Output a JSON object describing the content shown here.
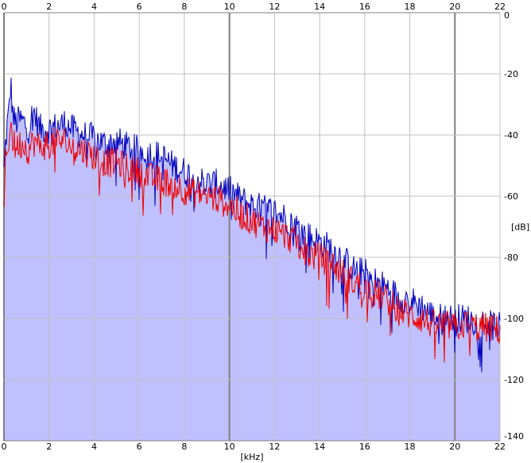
{
  "chart_data": {
    "type": "area",
    "xlabel": "[kHz]",
    "ylabel": "[dB]",
    "xlim": [
      0,
      22
    ],
    "ylim": [
      -140,
      0
    ],
    "x_ticks": [
      0,
      2,
      4,
      6,
      8,
      10,
      12,
      14,
      16,
      18,
      20,
      22
    ],
    "y_ticks": [
      0,
      -20,
      -40,
      -60,
      -80,
      -100,
      -120,
      -140
    ],
    "y_unit_at": -70,
    "grid": true,
    "major_x_ticks": [
      0,
      10,
      20
    ],
    "colors": {
      "background": "#ffffff",
      "grid": "#c0c0c0",
      "grid_major": "#808080",
      "envelope_fill": "#c0c0ff",
      "channel_1": "#0000c0",
      "channel_2": "#ee0000"
    },
    "series": [
      {
        "color": "#0000c0",
        "x": [
          0,
          0.05,
          0.15,
          0.2,
          0.3,
          0.4,
          0.5,
          0.7,
          0.9,
          1.1,
          1.3,
          1.6,
          2.0,
          2.4,
          2.7,
          3.0,
          3.5,
          4.0,
          4.5,
          5.0,
          5.5,
          6.0,
          6.5,
          7.0,
          7.5,
          8.0,
          8.5,
          9.0,
          9.5,
          10.0,
          10.5,
          11.0,
          11.5,
          12.0,
          12.5,
          13.0,
          13.5,
          14.0,
          14.5,
          15.0,
          15.5,
          16.0,
          16.5,
          17.0,
          17.5,
          18.0,
          18.5,
          19.0,
          19.5,
          20.0,
          20.5,
          21.0,
          21.5,
          22.0
        ],
        "y": [
          -52,
          -45,
          -36,
          -34,
          -23,
          -34,
          -36,
          -35,
          -36,
          -38,
          -32,
          -38,
          -38,
          -37,
          -36,
          -38,
          -40,
          -41,
          -43,
          -42,
          -44,
          -45,
          -46,
          -47,
          -50,
          -52,
          -54,
          -56,
          -56,
          -58,
          -61,
          -63,
          -64,
          -65,
          -67,
          -70,
          -73,
          -75,
          -77,
          -80,
          -84,
          -85,
          -88,
          -90,
          -93,
          -94,
          -96,
          -99,
          -100,
          -100,
          -100,
          -101,
          -102,
          -103
        ]
      },
      {
        "color": "#ee0000",
        "x": [
          0,
          0.05,
          0.15,
          0.2,
          0.3,
          0.4,
          0.5,
          0.7,
          0.9,
          1.1,
          1.3,
          1.6,
          2.0,
          2.4,
          2.7,
          3.0,
          3.5,
          4.0,
          4.5,
          5.0,
          5.5,
          6.0,
          6.5,
          7.0,
          7.5,
          8.0,
          8.5,
          9.0,
          9.5,
          10.0,
          10.5,
          11.0,
          11.5,
          12.0,
          12.5,
          13.0,
          13.5,
          14.0,
          14.5,
          15.0,
          15.5,
          16.0,
          16.5,
          17.0,
          17.5,
          18.0,
          18.5,
          19.0,
          19.5,
          20.0,
          20.5,
          21.0,
          21.5,
          22.0
        ],
        "y": [
          -66,
          -50,
          -45,
          -42,
          -36,
          -42,
          -44,
          -43,
          -43,
          -45,
          -42,
          -44,
          -43,
          -42,
          -42,
          -44,
          -45,
          -47,
          -49,
          -49,
          -51,
          -52,
          -54,
          -55,
          -56,
          -58,
          -59,
          -60,
          -61,
          -63,
          -66,
          -68,
          -70,
          -71,
          -73,
          -75,
          -79,
          -80,
          -82,
          -85,
          -88,
          -90,
          -92,
          -94,
          -97,
          -99,
          -100,
          -102,
          -102,
          -103,
          -102,
          -103,
          -103,
          -104
        ]
      }
    ]
  }
}
